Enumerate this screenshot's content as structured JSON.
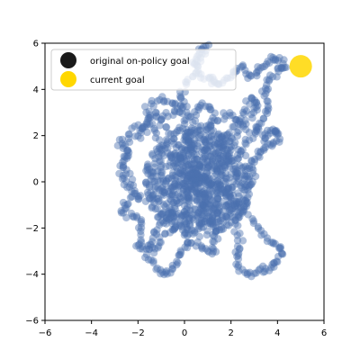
{
  "chart_data": {
    "type": "scatter",
    "title": "",
    "xlabel": "",
    "ylabel": "",
    "xlim": [
      -6,
      6
    ],
    "ylim": [
      -6,
      6
    ],
    "xticks": [
      -6,
      -4,
      -2,
      0,
      2,
      4,
      6
    ],
    "yticks": [
      -6,
      -4,
      -2,
      0,
      2,
      4,
      6
    ],
    "xtick_labels": [
      "−6",
      "−4",
      "−2",
      "0",
      "2",
      "4",
      "6"
    ],
    "ytick_labels": [
      "−6",
      "−4",
      "−2",
      "0",
      "2",
      "4",
      "6"
    ],
    "grid": false,
    "legend_position": "top-left",
    "trajectory_points": [
      [
        0.5,
        0.0
      ],
      [
        0.6,
        0.8
      ],
      [
        0.3,
        1.6
      ],
      [
        -0.2,
        2.4
      ],
      [
        0.4,
        3.0
      ],
      [
        0.8,
        3.4
      ],
      [
        1.2,
        3.0
      ],
      [
        1.0,
        2.0
      ],
      [
        0.8,
        1.0
      ],
      [
        0.2,
        0.2
      ],
      [
        -0.6,
        -0.4
      ],
      [
        -1.4,
        -0.8
      ],
      [
        -2.2,
        -0.6
      ],
      [
        -2.6,
        0.0
      ],
      [
        -2.8,
        0.6
      ],
      [
        -2.4,
        1.2
      ],
      [
        -2.6,
        1.6
      ],
      [
        -2.0,
        2.0
      ],
      [
        -1.6,
        2.6
      ],
      [
        -1.2,
        3.0
      ],
      [
        -0.6,
        2.2
      ],
      [
        -0.2,
        1.2
      ],
      [
        0.4,
        0.4
      ],
      [
        1.2,
        -0.4
      ],
      [
        2.0,
        -0.8
      ],
      [
        2.4,
        -1.2
      ],
      [
        2.2,
        -1.8
      ],
      [
        2.4,
        -2.6
      ],
      [
        2.2,
        -3.2
      ],
      [
        2.4,
        -3.8
      ],
      [
        2.8,
        -4.0
      ],
      [
        3.4,
        -3.8
      ],
      [
        3.8,
        -3.6
      ],
      [
        4.2,
        -3.2
      ],
      [
        4.0,
        -2.8
      ],
      [
        3.6,
        -2.4
      ],
      [
        3.0,
        -1.8
      ],
      [
        2.4,
        -1.0
      ],
      [
        1.6,
        -0.4
      ],
      [
        0.8,
        0.2
      ],
      [
        0.0,
        -0.6
      ],
      [
        -0.6,
        -1.4
      ],
      [
        -1.2,
        -2.0
      ],
      [
        -1.4,
        -2.6
      ],
      [
        -1.6,
        -3.2
      ],
      [
        -1.2,
        -3.8
      ],
      [
        -0.8,
        -4.0
      ],
      [
        -0.4,
        -3.6
      ],
      [
        -0.2,
        -3.0
      ],
      [
        0.2,
        -2.6
      ],
      [
        0.8,
        -2.8
      ],
      [
        1.2,
        -3.2
      ],
      [
        1.4,
        -2.4
      ],
      [
        1.0,
        -1.6
      ],
      [
        0.6,
        -0.8
      ],
      [
        1.4,
        0.4
      ],
      [
        2.0,
        1.0
      ],
      [
        2.6,
        1.6
      ],
      [
        3.0,
        2.2
      ],
      [
        3.4,
        2.6
      ],
      [
        3.6,
        3.2
      ],
      [
        3.4,
        3.8
      ],
      [
        3.6,
        4.4
      ],
      [
        4.0,
        4.8
      ],
      [
        4.4,
        5.0
      ],
      [
        4.0,
        5.4
      ],
      [
        3.6,
        5.2
      ],
      [
        3.2,
        4.8
      ],
      [
        2.8,
        4.6
      ],
      [
        2.4,
        5.0
      ],
      [
        2.0,
        4.6
      ],
      [
        1.6,
        4.2
      ],
      [
        1.2,
        4.4
      ],
      [
        0.8,
        4.6
      ],
      [
        0.4,
        5.0
      ],
      [
        0.6,
        5.6
      ],
      [
        1.0,
        5.9
      ],
      [
        0.6,
        5.2
      ],
      [
        0.2,
        4.4
      ],
      [
        -0.2,
        3.8
      ],
      [
        0.0,
        3.2
      ],
      [
        -0.6,
        3.0
      ],
      [
        -1.2,
        2.4
      ],
      [
        -2.2,
        2.4
      ],
      [
        -2.8,
        1.6
      ],
      [
        -2.4,
        0.4
      ],
      [
        -2.0,
        -0.6
      ],
      [
        -2.6,
        -1.0
      ],
      [
        -2.6,
        -1.4
      ],
      [
        -2.0,
        -1.6
      ],
      [
        -1.8,
        -2.2
      ],
      [
        -2.0,
        -2.8
      ],
      [
        -1.4,
        -3.0
      ],
      [
        -1.0,
        -2.4
      ],
      [
        -0.4,
        -2.0
      ],
      [
        0.4,
        -1.6
      ],
      [
        1.0,
        -1.0
      ],
      [
        1.8,
        -1.4
      ],
      [
        2.6,
        -0.6
      ],
      [
        3.0,
        0.2
      ],
      [
        2.8,
        0.8
      ],
      [
        3.2,
        1.2
      ],
      [
        3.6,
        1.6
      ],
      [
        4.0,
        1.8
      ],
      [
        4.0,
        2.2
      ],
      [
        3.6,
        2.2
      ],
      [
        3.4,
        1.8
      ],
      [
        2.6,
        2.4
      ],
      [
        2.0,
        3.0
      ],
      [
        1.4,
        2.6
      ],
      [
        0.8,
        2.2
      ],
      [
        0.2,
        2.8
      ],
      [
        -0.4,
        3.4
      ],
      [
        -1.0,
        3.6
      ],
      [
        -1.6,
        3.2
      ],
      [
        -1.6,
        2.4
      ],
      [
        -1.0,
        1.6
      ],
      [
        -0.4,
        0.8
      ],
      [
        0.2,
        1.6
      ],
      [
        1.0,
        1.4
      ],
      [
        1.6,
        1.8
      ],
      [
        2.2,
        2.4
      ],
      [
        2.6,
        3.0
      ],
      [
        2.8,
        3.6
      ],
      [
        3.2,
        3.4
      ],
      [
        2.8,
        2.8
      ],
      [
        2.2,
        2.0
      ],
      [
        1.8,
        1.2
      ],
      [
        1.2,
        0.8
      ],
      [
        0.4,
        0.6
      ]
    ],
    "series": [
      {
        "name": "original on-policy goal",
        "color": "#1a1a1a",
        "points": []
      },
      {
        "name": "current goal",
        "color": "#ffd700",
        "points": [
          [
            5.0,
            5.0
          ]
        ]
      }
    ],
    "trajectory_color": "#4c72b0"
  }
}
